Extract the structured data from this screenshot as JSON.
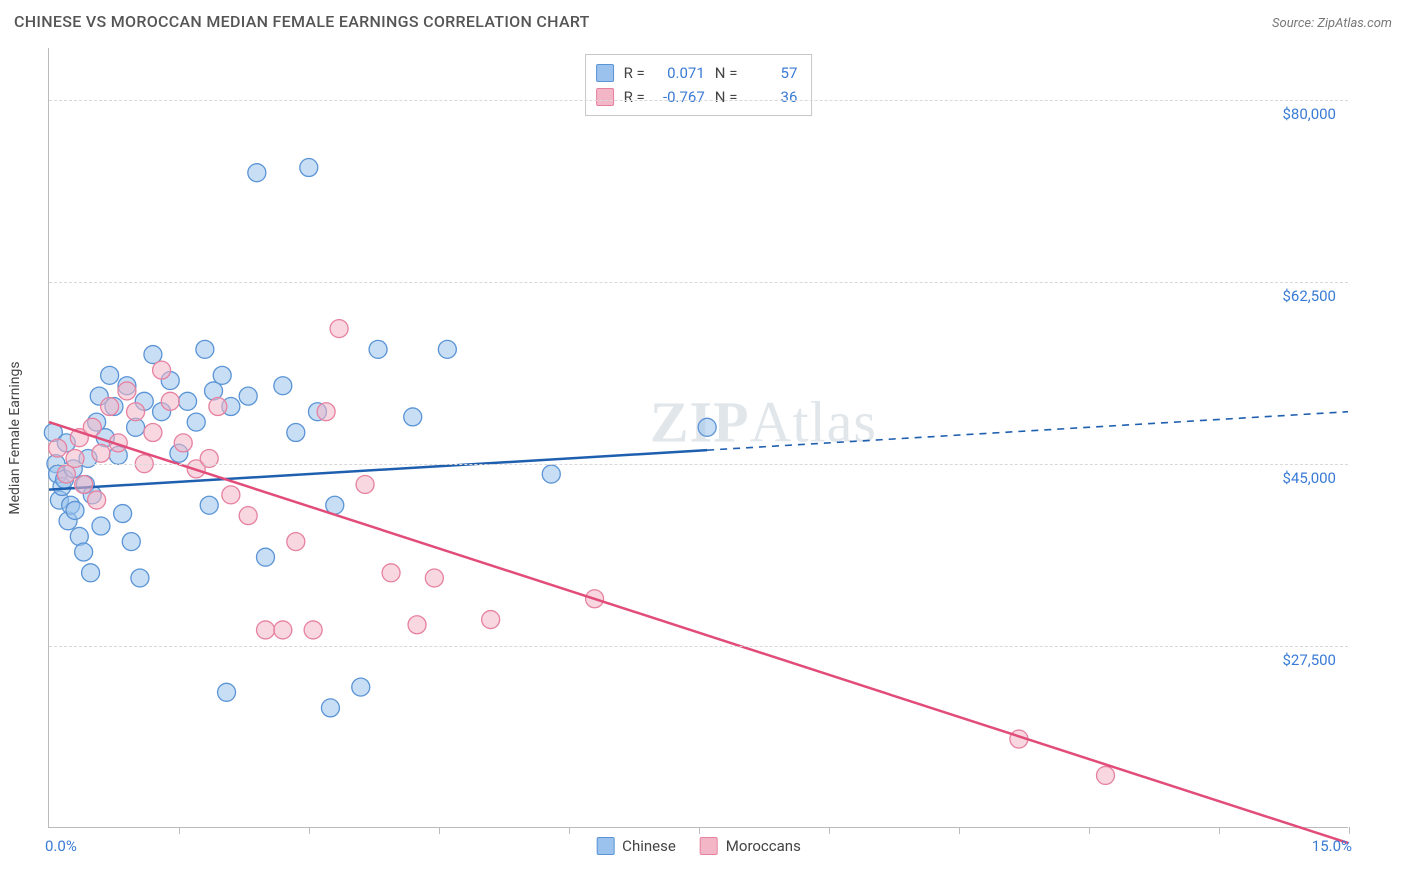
{
  "title": "CHINESE VS MOROCCAN MEDIAN FEMALE EARNINGS CORRELATION CHART",
  "source_label": "Source: ZipAtlas.com",
  "watermark": {
    "bold": "ZIP",
    "light": "Atlas"
  },
  "y_axis": {
    "label": "Median Female Earnings"
  },
  "chart": {
    "type": "scatter",
    "xlim": [
      0,
      15
    ],
    "ylim": [
      10000,
      85000
    ],
    "x_ticks": [
      1.5,
      3.0,
      4.5,
      6.0,
      7.5,
      9.0,
      10.5,
      12.0,
      13.5,
      15.0
    ],
    "x_min_label": "0.0%",
    "x_max_label": "15.0%",
    "y_gridlines": [
      27500,
      45000,
      62500,
      80000
    ],
    "y_tick_labels": [
      "$27,500",
      "$45,000",
      "$62,500",
      "$80,000"
    ],
    "background": "#ffffff",
    "grid_color": "#d8d8d8",
    "axis_color": "#bbbbbb",
    "marker_radius": 9,
    "marker_opacity": 0.55,
    "series": [
      {
        "name": "Chinese",
        "key": "chinese",
        "color_fill": "#9bc2ec",
        "color_stroke": "#5a94d6",
        "line_color": "#1f5fb0",
        "R": "0.071",
        "N": "57",
        "trend": {
          "x1": 0,
          "y1": 42500,
          "x2": 15,
          "y2": 50000,
          "solid_until_x": 7.6
        },
        "points": [
          [
            0.05,
            48000
          ],
          [
            0.08,
            45000
          ],
          [
            0.1,
            44000
          ],
          [
            0.12,
            41500
          ],
          [
            0.15,
            42800
          ],
          [
            0.18,
            43500
          ],
          [
            0.2,
            47000
          ],
          [
            0.22,
            39500
          ],
          [
            0.25,
            41000
          ],
          [
            0.28,
            44500
          ],
          [
            0.3,
            40500
          ],
          [
            0.35,
            38000
          ],
          [
            0.4,
            36500
          ],
          [
            0.42,
            43000
          ],
          [
            0.45,
            45500
          ],
          [
            0.48,
            34500
          ],
          [
            0.5,
            42000
          ],
          [
            0.55,
            49000
          ],
          [
            0.58,
            51500
          ],
          [
            0.6,
            39000
          ],
          [
            0.65,
            47500
          ],
          [
            0.7,
            53500
          ],
          [
            0.75,
            50500
          ],
          [
            0.8,
            45800
          ],
          [
            0.85,
            40200
          ],
          [
            0.9,
            52500
          ],
          [
            0.95,
            37500
          ],
          [
            1.0,
            48500
          ],
          [
            1.1,
            51000
          ],
          [
            1.2,
            55500
          ],
          [
            1.3,
            50000
          ],
          [
            1.4,
            53000
          ],
          [
            1.5,
            46000
          ],
          [
            1.6,
            51000
          ],
          [
            1.7,
            49000
          ],
          [
            1.8,
            56000
          ],
          [
            1.85,
            41000
          ],
          [
            1.9,
            52000
          ],
          [
            2.0,
            53500
          ],
          [
            2.05,
            23000
          ],
          [
            2.1,
            50500
          ],
          [
            2.3,
            51500
          ],
          [
            2.4,
            73000
          ],
          [
            2.5,
            36000
          ],
          [
            2.7,
            52500
          ],
          [
            2.85,
            48000
          ],
          [
            3.0,
            73500
          ],
          [
            3.1,
            50000
          ],
          [
            3.25,
            21500
          ],
          [
            3.3,
            41000
          ],
          [
            3.6,
            23500
          ],
          [
            3.8,
            56000
          ],
          [
            4.2,
            49500
          ],
          [
            4.6,
            56000
          ],
          [
            5.8,
            44000
          ],
          [
            7.6,
            48500
          ],
          [
            1.05,
            34000
          ]
        ]
      },
      {
        "name": "Moroccans",
        "key": "moroccans",
        "color_fill": "#f3b6c6",
        "color_stroke": "#e681a0",
        "line_color": "#e14d78",
        "R": "-0.767",
        "N": "36",
        "trend": {
          "x1": 0,
          "y1": 49000,
          "x2": 15,
          "y2": 8500,
          "solid_until_x": 15
        },
        "points": [
          [
            0.1,
            46500
          ],
          [
            0.2,
            44000
          ],
          [
            0.3,
            45500
          ],
          [
            0.35,
            47500
          ],
          [
            0.4,
            43000
          ],
          [
            0.5,
            48500
          ],
          [
            0.55,
            41500
          ],
          [
            0.6,
            46000
          ],
          [
            0.7,
            50500
          ],
          [
            0.8,
            47000
          ],
          [
            0.9,
            52000
          ],
          [
            1.0,
            50000
          ],
          [
            1.1,
            45000
          ],
          [
            1.2,
            48000
          ],
          [
            1.3,
            54000
          ],
          [
            1.4,
            51000
          ],
          [
            1.55,
            47000
          ],
          [
            1.7,
            44500
          ],
          [
            1.85,
            45500
          ],
          [
            1.95,
            50500
          ],
          [
            2.1,
            42000
          ],
          [
            2.3,
            40000
          ],
          [
            2.5,
            29000
          ],
          [
            2.7,
            29000
          ],
          [
            2.85,
            37500
          ],
          [
            3.05,
            29000
          ],
          [
            3.2,
            50000
          ],
          [
            3.35,
            58000
          ],
          [
            3.65,
            43000
          ],
          [
            3.95,
            34500
          ],
          [
            4.25,
            29500
          ],
          [
            4.45,
            34000
          ],
          [
            5.1,
            30000
          ],
          [
            6.3,
            32000
          ],
          [
            11.2,
            18500
          ],
          [
            12.2,
            15000
          ]
        ]
      }
    ]
  },
  "legend_top": {
    "r_label": "R =",
    "n_label": "N ="
  },
  "legend_bottom": {
    "items": [
      "Chinese",
      "Moroccans"
    ]
  }
}
